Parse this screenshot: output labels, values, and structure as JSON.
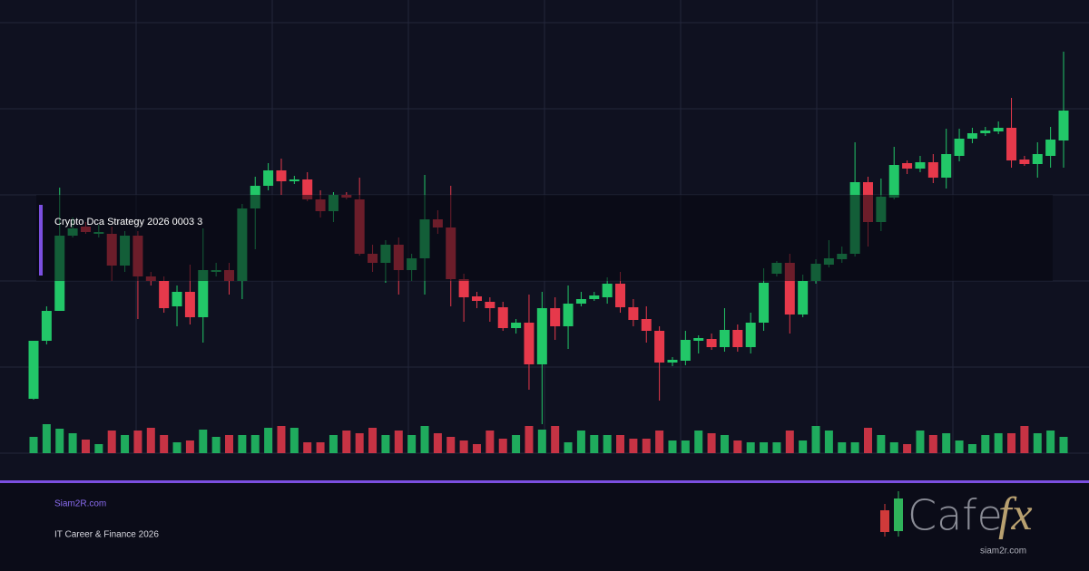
{
  "overlay_title": "Crypto Dca Strategy 2026 0003 3",
  "footer": {
    "site": "Siam2R.com",
    "tagline": "IT Career & Finance 2026"
  },
  "logo": {
    "word": "Cafe",
    "accent": "fx",
    "url": "siam2r.com"
  },
  "chart_data": {
    "type": "candlestick",
    "up_color": "#22c768",
    "down_color": "#e6394b",
    "grid": true,
    "ylim": [
      0,
      475
    ],
    "yticks": [
      0,
      95,
      190,
      285,
      380,
      475
    ],
    "open": [
      60,
      124,
      157,
      240,
      250,
      242,
      242,
      207,
      240,
      195,
      190,
      162,
      178,
      150,
      200,
      202,
      190,
      270,
      295,
      312,
      300,
      302,
      280,
      267,
      285,
      280,
      220,
      210,
      230,
      202,
      215,
      258,
      249,
      192,
      173,
      167,
      161,
      138,
      144,
      98,
      160,
      140,
      165,
      170,
      172,
      187,
      161,
      148,
      135,
      100,
      102,
      124,
      126,
      117,
      136,
      117,
      144,
      198,
      210,
      153,
      190,
      208,
      214,
      220,
      299,
      255,
      282,
      320,
      314,
      321,
      304,
      328,
      347,
      353,
      355,
      359,
      324,
      319,
      328,
      345
    ],
    "high": [
      124,
      162,
      293,
      260,
      255,
      252,
      250,
      245,
      245,
      200,
      195,
      185,
      208,
      248,
      210,
      210,
      275,
      305,
      320,
      325,
      306,
      310,
      290,
      288,
      288,
      304,
      230,
      235,
      238,
      220,
      307,
      268,
      295,
      198,
      178,
      172,
      167,
      148,
      175,
      178,
      172,
      185,
      178,
      178,
      194,
      200,
      170,
      162,
      140,
      106,
      135,
      130,
      132,
      160,
      142,
      155,
      204,
      212,
      220,
      197,
      214,
      235,
      228,
      343,
      305,
      303,
      338,
      323,
      328,
      330,
      358,
      358,
      359,
      360,
      366,
      392,
      328,
      343,
      360,
      443
    ],
    "low": [
      59,
      120,
      157,
      238,
      242,
      238,
      190,
      200,
      148,
      185,
      155,
      140,
      142,
      122,
      195,
      175,
      170,
      225,
      290,
      285,
      297,
      278,
      260,
      255,
      280,
      218,
      200,
      188,
      175,
      190,
      175,
      242,
      162,
      145,
      160,
      145,
      135,
      132,
      70,
      32,
      125,
      115,
      162,
      168,
      165,
      155,
      140,
      122,
      58,
      96,
      97,
      110,
      114,
      112,
      112,
      110,
      135,
      195,
      132,
      150,
      187,
      205,
      210,
      217,
      228,
      245,
      280,
      308,
      310,
      298,
      292,
      322,
      342,
      350,
      352,
      315,
      317,
      304,
      315,
      315
    ],
    "close": [
      124,
      157,
      240,
      248,
      244,
      244,
      207,
      240,
      195,
      190,
      160,
      178,
      150,
      202,
      202,
      190,
      270,
      295,
      312,
      300,
      302,
      280,
      267,
      285,
      282,
      220,
      210,
      230,
      202,
      215,
      258,
      249,
      192,
      172,
      168,
      160,
      138,
      144,
      98,
      160,
      140,
      165,
      170,
      174,
      187,
      161,
      147,
      135,
      100,
      103,
      125,
      127,
      117,
      136,
      117,
      144,
      188,
      210,
      153,
      190,
      209,
      215,
      220,
      299,
      255,
      283,
      318,
      314,
      321,
      304,
      330,
      347,
      353,
      356,
      359,
      323,
      319,
      330,
      346,
      378
    ],
    "volume": [
      18,
      32,
      27,
      22,
      15,
      10,
      25,
      20,
      25,
      28,
      20,
      12,
      14,
      26,
      18,
      20,
      20,
      20,
      28,
      30,
      28,
      12,
      12,
      20,
      25,
      22,
      28,
      20,
      25,
      20,
      30,
      22,
      18,
      14,
      10,
      25,
      16,
      20,
      30,
      26,
      30,
      12,
      25,
      20,
      20,
      20,
      16,
      16,
      25,
      14,
      14,
      25,
      22,
      20,
      14,
      12,
      12,
      12,
      25,
      14,
      30,
      25,
      12,
      12,
      28,
      20,
      12,
      10,
      25,
      20,
      22,
      14,
      10,
      20,
      22,
      22,
      30,
      22,
      25,
      18
    ]
  }
}
